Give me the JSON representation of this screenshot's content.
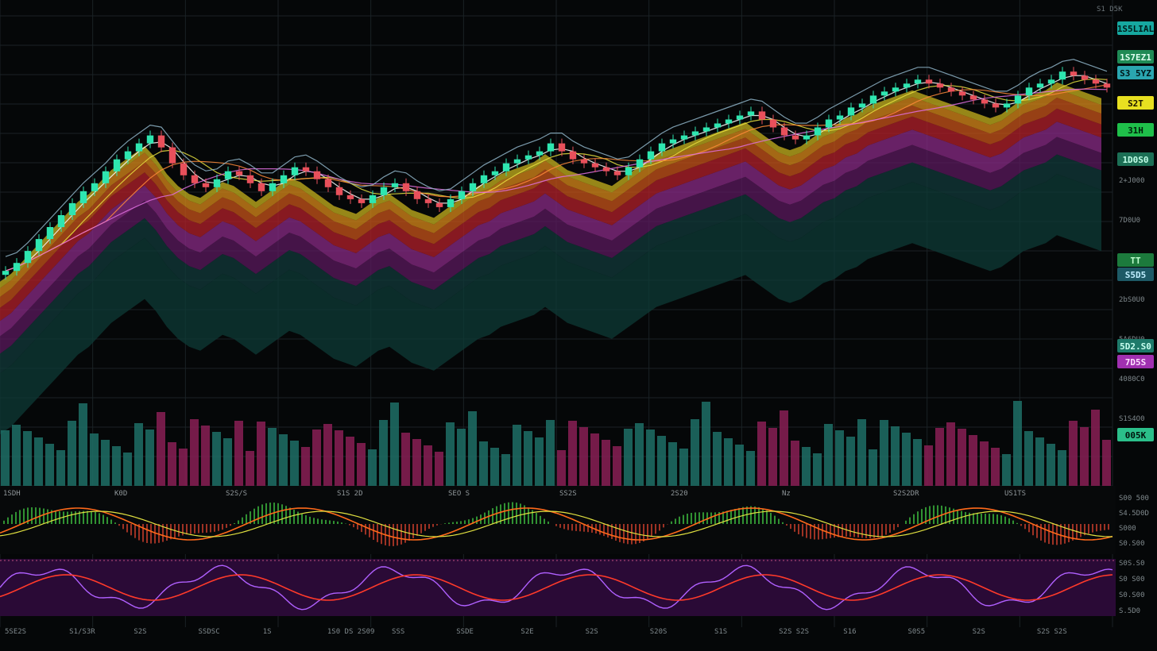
{
  "theme": {
    "background": "#050708",
    "grid": "#1a2226",
    "bull": "#2ee6b0",
    "bear": "#e8505b",
    "ribbon_colors": [
      "#0d3b35",
      "#123a3a",
      "#5b1a5e",
      "#8a2b86",
      "#b3202a",
      "#c8541a",
      "#d98a1a",
      "#c7b31d"
    ],
    "macd_hist_up": "#3fbf3f",
    "macd_hist_down": "#d0402c",
    "macd_line": "#ff6a1a",
    "signal_line": "#e0e040",
    "rsi_bg": "#2a0a36",
    "rsi_line": "#b060ff",
    "rsi_signal": "#ff3a2a",
    "vol_up": "#1f6f66",
    "vol_down": "#8a1f55"
  },
  "price_axis": {
    "top_label": "S1 D5K",
    "labels": [
      "2+J000",
      "7D0U0",
      "6S0K0",
      "2bS0U0",
      "5A6DU0",
      "4080C0",
      "S1S4O0"
    ]
  },
  "price_tags": [
    {
      "text": "1S5LIAL",
      "bg": "#16a8a0",
      "fg": "#001c1a"
    },
    {
      "text": "1S7EZ1",
      "bg": "#1f8a55",
      "fg": "#dffff0"
    },
    {
      "text": "S3 5YZ",
      "bg": "#2aa6b0",
      "fg": "#00171a"
    },
    {
      "text": "S2T",
      "bg": "#e8e020",
      "fg": "#1a1400"
    },
    {
      "text": "31H",
      "bg": "#1fbf4a",
      "fg": "#00200a"
    },
    {
      "text": "1D0S0",
      "bg": "#1c6f55",
      "fg": "#c0ffe8"
    },
    {
      "text": "TT",
      "bg": "#1c7a3c",
      "fg": "#bfffcf"
    },
    {
      "text": "S5D5",
      "bg": "#1d5a66",
      "fg": "#bfeeff"
    },
    {
      "text": "5D2.S0",
      "bg": "#1e7a6a",
      "fg": "#c8fff0"
    },
    {
      "text": "7D5S",
      "bg": "#a030b0",
      "fg": "#ffe0ff"
    },
    {
      "text": "005K",
      "bg": "#2bbf8a",
      "fg": "#00140c"
    }
  ],
  "macd_panel": {
    "labels": [
      "1SDH",
      "K0D",
      "S2S/S",
      "S1S 2D",
      "SEO S",
      "SS2S",
      "2S20",
      "Nz",
      "S2S2DR",
      "US1TS"
    ],
    "axis": [
      "S00 500",
      "S4.5D0D",
      "S000",
      "S0.S00"
    ]
  },
  "rsi_panel": {
    "axis": [
      "S0S.S0",
      "S0 S00",
      "S0.S00",
      "S.5D0"
    ]
  },
  "time_axis": {
    "labels": [
      "5SE2S",
      "S1/S3R",
      "S2S",
      "SSDSC",
      "1S",
      "1S0 DS 2S09",
      "SSS",
      "SSDE",
      "S2E",
      "S2S",
      "S20S",
      "S1S",
      "S2S S2S",
      "S16",
      "S0S5",
      "S2S",
      "S2S S2S"
    ]
  },
  "chart_data": {
    "type": "candlestick",
    "title": "",
    "y_range": [
      0,
      100
    ],
    "closes": [
      38,
      40,
      43,
      46,
      49,
      52,
      55,
      58,
      60,
      63,
      66,
      68,
      70,
      72,
      69,
      65,
      62,
      60,
      59,
      61,
      63,
      62,
      60,
      58,
      60,
      62,
      64,
      63,
      61,
      59,
      57,
      56,
      55,
      57,
      59,
      60,
      58,
      56,
      55,
      54,
      56,
      58,
      60,
      62,
      63,
      65,
      66,
      67,
      68,
      70,
      68,
      66,
      65,
      64,
      63,
      62,
      64,
      66,
      68,
      70,
      71,
      72,
      73,
      74,
      75,
      76,
      77,
      78,
      76,
      74,
      72,
      71,
      72,
      74,
      76,
      77,
      79,
      80,
      82,
      83,
      84,
      85,
      86,
      85,
      84,
      83,
      82,
      81,
      80,
      79,
      80,
      82,
      84,
      85,
      86,
      88,
      87,
      86,
      85,
      84
    ]
  }
}
